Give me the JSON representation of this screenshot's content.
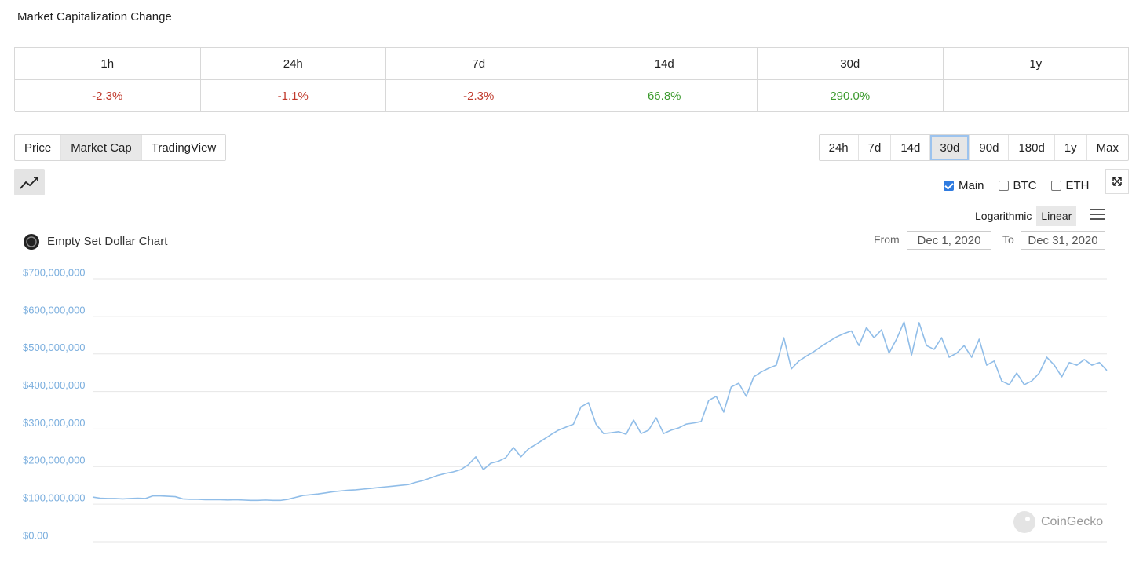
{
  "header": {
    "title": "Market Capitalization Change"
  },
  "change_table": {
    "cells": [
      {
        "period": "1h",
        "change": "-2.3%",
        "color": "#c0392b"
      },
      {
        "period": "24h",
        "change": "-1.1%",
        "color": "#c0392b"
      },
      {
        "period": "7d",
        "change": "-2.3%",
        "color": "#c0392b"
      },
      {
        "period": "14d",
        "change": "66.8%",
        "color": "#3c9a2e"
      },
      {
        "period": "30d",
        "change": "290.0%",
        "color": "#3c9a2e"
      },
      {
        "period": "1y"
      }
    ]
  },
  "chart_tabs": [
    {
      "label": "Price"
    },
    {
      "label": "Market Cap",
      "selected": true
    },
    {
      "label": "TradingView"
    }
  ],
  "ranges": [
    {
      "label": "24h"
    },
    {
      "label": "7d"
    },
    {
      "label": "14d"
    },
    {
      "label": "30d",
      "selected": true
    },
    {
      "label": "90d"
    },
    {
      "label": "180d"
    },
    {
      "label": "1y"
    },
    {
      "label": "Max"
    }
  ],
  "series_toggles": [
    {
      "label": "Main",
      "checked": true
    },
    {
      "label": "BTC",
      "checked": false
    },
    {
      "label": "ETH",
      "checked": false
    }
  ],
  "scale_options": [
    {
      "label": "Logarithmic"
    },
    {
      "label": "Linear",
      "selected": true
    }
  ],
  "chart_data": {
    "type": "line",
    "title": "Empty Set Dollar Chart",
    "from_label": "From",
    "from": "Dec 1, 2020",
    "to_label": "To",
    "to": "Dec 31, 2020",
    "credit": "CoinGecko",
    "ylim": [
      0,
      700000000
    ],
    "yticks": [
      {
        "value": 0,
        "label": "$0.00"
      },
      {
        "value": 100000000,
        "label": "$100,000,000"
      },
      {
        "value": 200000000,
        "label": "$200,000,000"
      },
      {
        "value": 300000000,
        "label": "$300,000,000"
      },
      {
        "value": 400000000,
        "label": "$400,000,000"
      },
      {
        "value": 500000000,
        "label": "$500,000,000"
      },
      {
        "value": 600000000,
        "label": "$600,000,000"
      },
      {
        "value": 700000000,
        "label": "$700,000,000"
      }
    ],
    "grid": true,
    "series": [
      {
        "color": "#90bde8",
        "values": [
          119000000,
          116000000,
          115000000,
          115000000,
          114000000,
          115000000,
          116000000,
          115000000,
          122000000,
          122000000,
          121000000,
          120000000,
          114000000,
          113000000,
          113000000,
          112000000,
          112000000,
          112000000,
          111000000,
          112000000,
          111000000,
          110000000,
          110000000,
          111000000,
          110000000,
          110000000,
          113000000,
          118000000,
          123000000,
          125000000,
          127000000,
          130000000,
          133000000,
          135000000,
          137000000,
          138000000,
          140000000,
          142000000,
          144000000,
          146000000,
          148000000,
          150000000,
          152000000,
          158000000,
          163000000,
          170000000,
          177000000,
          182000000,
          186000000,
          192000000,
          205000000,
          226000000,
          192000000,
          209000000,
          214000000,
          224000000,
          251000000,
          226000000,
          247000000,
          259000000,
          272000000,
          285000000,
          297000000,
          305000000,
          313000000,
          359000000,
          370000000,
          313000000,
          288000000,
          290000000,
          293000000,
          286000000,
          324000000,
          288000000,
          297000000,
          330000000,
          288000000,
          297000000,
          303000000,
          313000000,
          316000000,
          320000000,
          376000000,
          387000000,
          345000000,
          412000000,
          422000000,
          387000000,
          439000000,
          452000000,
          462000000,
          470000000,
          543000000,
          460000000,
          481000000,
          494000000,
          506000000,
          520000000,
          533000000,
          545000000,
          554000000,
          561000000,
          522000000,
          570000000,
          543000000,
          564000000,
          502000000,
          539000000,
          585000000,
          497000000,
          583000000,
          522000000,
          512000000,
          543000000,
          491000000,
          502000000,
          522000000,
          491000000,
          539000000,
          470000000,
          481000000,
          428000000,
          418000000,
          449000000,
          418000000,
          428000000,
          449000000,
          491000000,
          470000000,
          439000000,
          477000000,
          470000000,
          485000000,
          470000000,
          477000000,
          456000000
        ]
      }
    ]
  }
}
